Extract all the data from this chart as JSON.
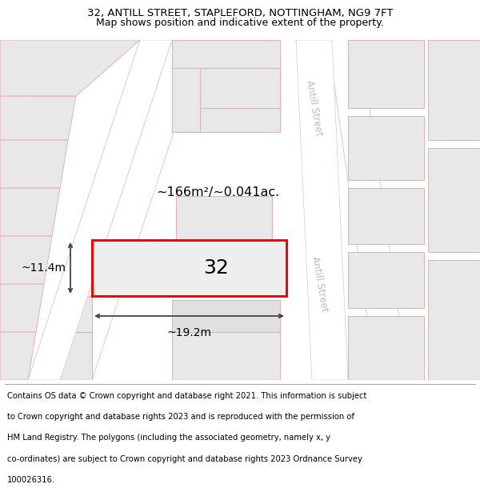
{
  "title_line1": "32, ANTILL STREET, STAPLEFORD, NOTTINGHAM, NG9 7FT",
  "title_line2": "Map shows position and indicative extent of the property.",
  "footer_lines": [
    "Contains OS data © Crown copyright and database right 2021. This information is subject",
    "to Crown copyright and database rights 2023 and is reproduced with the permission of",
    "HM Land Registry. The polygons (including the associated geometry, namely x, y",
    "co-ordinates) are subject to Crown copyright and database rights 2023 Ordnance Survey",
    "100026316."
  ],
  "building_fill": "#e8e8e8",
  "building_edge_color": "#e8b0b0",
  "map_bg": "#eeeeee",
  "road_color": "#ffffff",
  "property_label": "32",
  "area_label": "~166m²/~0.041ac.",
  "width_label": "~19.2m",
  "height_label": "~11.4m",
  "street_label": "Antill Street",
  "title_fontsize": 9.5,
  "footer_fontsize": 7.2,
  "prop_edge": "#ff0000",
  "prop_fill": "#eeeeee",
  "dim_color": "#444444",
  "street_text_color": "#bbbbbb"
}
